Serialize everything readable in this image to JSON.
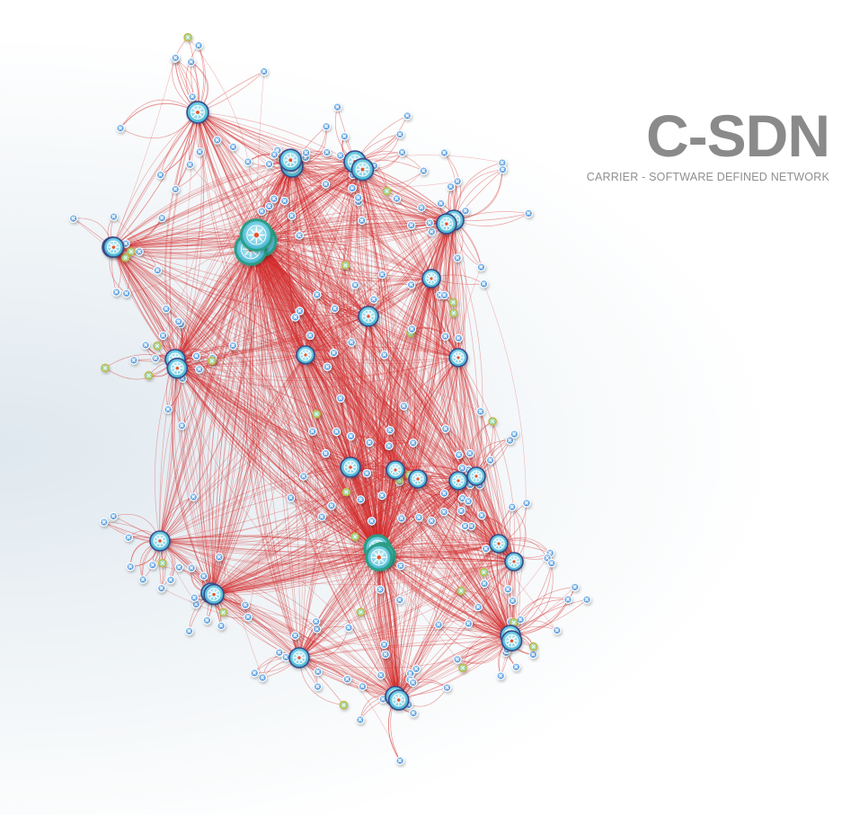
{
  "brand": {
    "title": "C-SDN",
    "subtitle": "CARRIER - SOFTWARE DEFINED NETWORK"
  },
  "colors": {
    "link": "#d42a2a",
    "hub_border": "#2a9e84",
    "hub_fill": "#5fc4dd",
    "node_fill": "#3b8ed6",
    "accent_node": "#c9b43a",
    "title": "#8a8a8a",
    "subtitle": "#8f8f8f"
  },
  "legend_icons": [
    "controller-hub-icon",
    "switch-node-icon",
    "edge-node-icon"
  ]
}
